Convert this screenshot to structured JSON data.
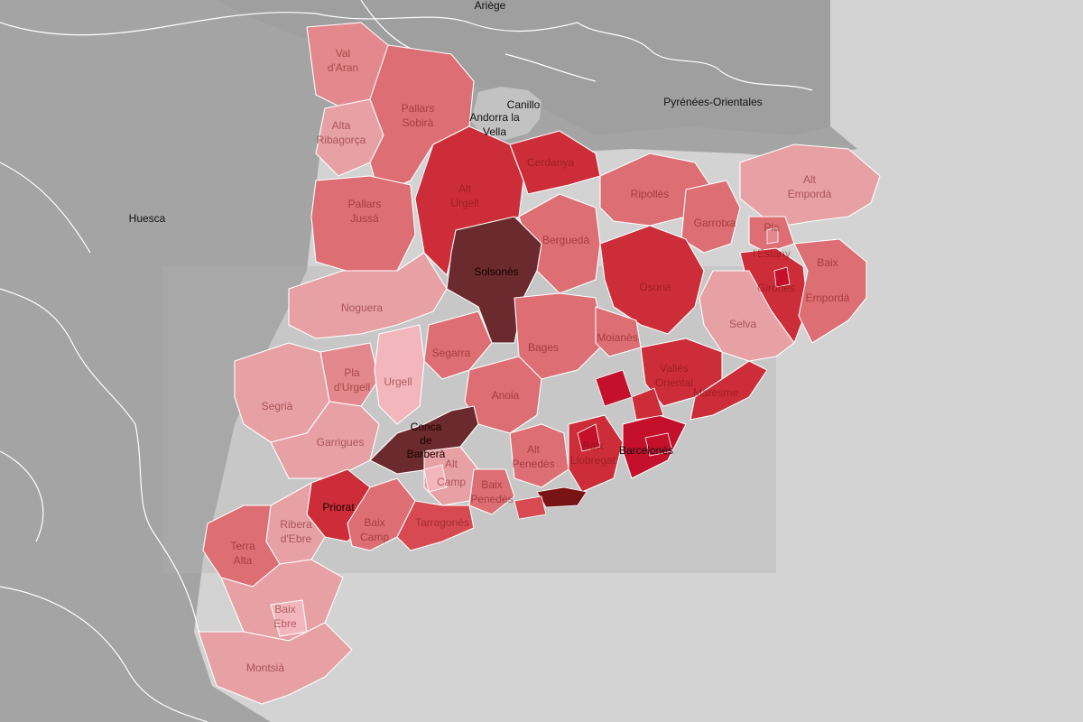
{
  "colors": {
    "sea": "#d3d3d3",
    "land_outside": "#a4a4a4",
    "land_outside_light": "#b3b3b3",
    "land_outside_dark": "#9a9a9a",
    "andorra": "#c2c2c2",
    "c1": "#f2b6bc",
    "c2": "#e7a0a4",
    "c3": "#e3888c",
    "c4": "#dd6e73",
    "c5": "#d84a52",
    "c6": "#cd2d38",
    "c7": "#c4102a",
    "c8": "#6b2a2d",
    "c9": "#7a1414"
  },
  "labels": {
    "ariege": "Ariège",
    "canillo": "Canillo",
    "andorra_1": "Andorra la",
    "andorra_2": "Vella",
    "pyrenees": "Pyrénées-Orientales",
    "huesca": "Huesca",
    "val_1": "Val",
    "val_2": "d'Aran",
    "alta_1": "Alta",
    "alta_2": "Ribagorça",
    "pallars_s_1": "Pallars",
    "pallars_s_2": "Sobirà",
    "alt_urgell_1": "Alt",
    "alt_urgell_2": "Urgell",
    "cerdanya": "Cerdanya",
    "ripolles": "Ripollès",
    "alt_emp_1": "Alt",
    "alt_emp_2": "Empordà",
    "pallars_j_1": "Pallars",
    "pallars_j_2": "Jussà",
    "garrotxa": "Garrotxa",
    "pla_estany_1": "Pla",
    "pla_estany_2": "l'Estany",
    "bergueda": "Berguedà",
    "solsones": "Solsonès",
    "girones": "Gironès",
    "baix_emp_1": "Baix",
    "baix_emp_2": "Empordà",
    "osona": "Osona",
    "noguera": "Noguera",
    "selva": "Selva",
    "segarra": "Segarra",
    "bages": "Bages",
    "moianes": "Moianès",
    "pla_urgell_1": "Pla",
    "pla_urgell_2": "d'Urgell",
    "urgell": "Urgell",
    "valles_1": "Vallès",
    "valles_2": "Oriental",
    "maresme": "Maresme",
    "anoia": "Anoia",
    "segria": "Segrià",
    "garrigues": "Garrigues",
    "conca_1": "Conca",
    "conca_2": "de",
    "conca_3": "Barberà",
    "alt_pen_1": "Alt",
    "alt_pen_2": "Penedès",
    "baix_ll_1": "Baix",
    "baix_ll_2": "Llobregat",
    "barcelones": "Barcelonès",
    "alt_camp_1": "Alt",
    "alt_camp_2": "Camp",
    "baix_pen_1": "Baix",
    "baix_pen_2": "Penedès",
    "priorat": "Priorat",
    "ribera_1": "Ribera",
    "ribera_2": "d'Ebre",
    "baix_camp_1": "Baix",
    "baix_camp_2": "Camp",
    "tarragones": "Tarragonès",
    "terra_1": "Terra",
    "terra_2": "Alta",
    "baix_ebre_1": "Baix",
    "baix_ebre_2": "Ebre",
    "montsia": "Montsià"
  }
}
